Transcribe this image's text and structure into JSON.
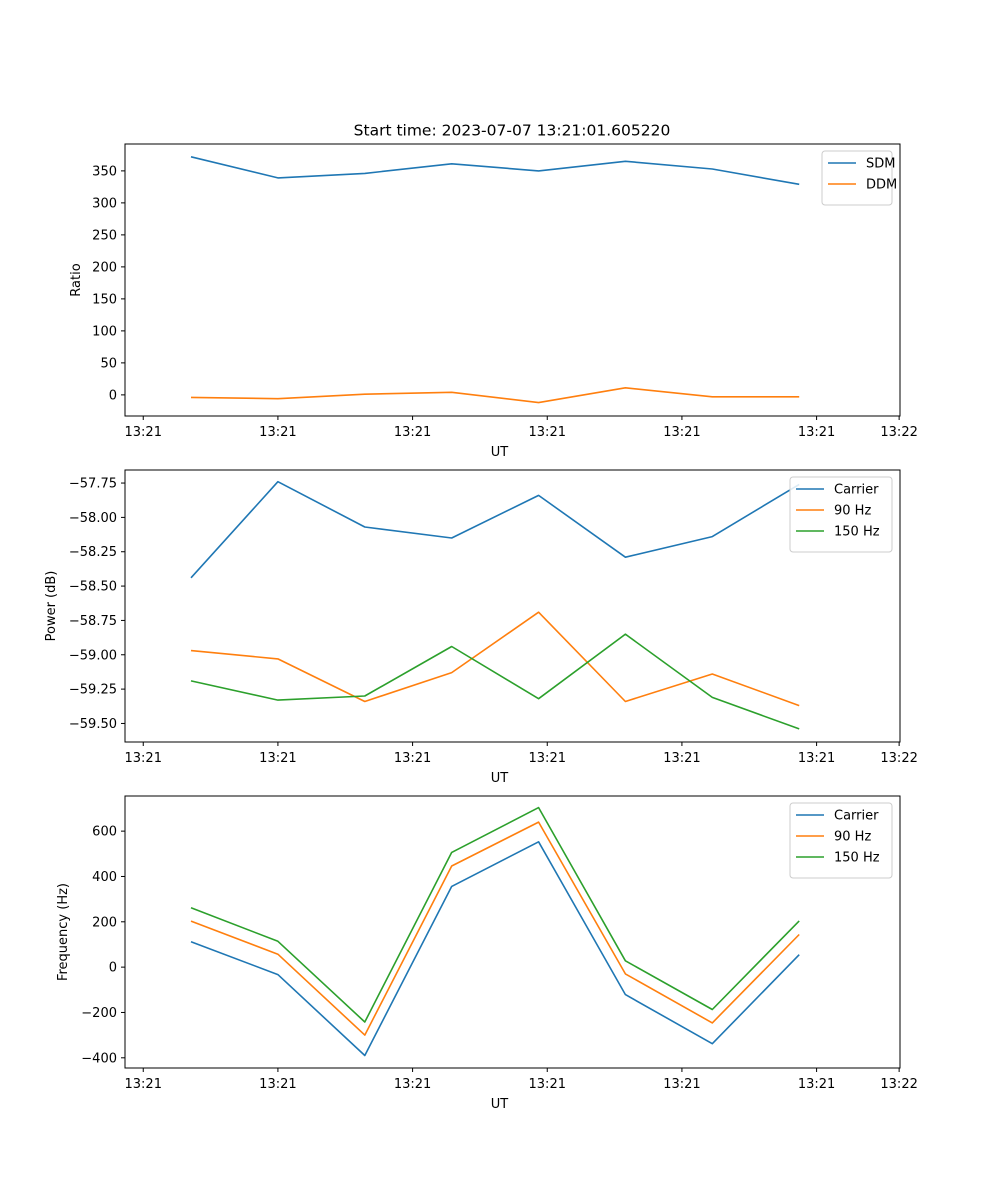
{
  "figure_title": "Start time: 2023-07-07 13:21:01.605220",
  "chart_data": [
    {
      "type": "line",
      "title": "Start time: 2023-07-07 13:21:01.605220",
      "xlabel": "UT",
      "ylabel": "Ratio",
      "x": [
        1,
        2,
        3,
        4,
        5,
        6,
        7,
        8
      ],
      "xlim": [
        0.24,
        9.16
      ],
      "xticks": [
        0.45,
        2.0,
        3.55,
        5.1,
        6.65,
        8.2,
        9.15
      ],
      "xtick_labels": [
        "13:21",
        "13:21",
        "13:21",
        "13:21",
        "13:21",
        "13:21",
        "13:22"
      ],
      "ylim": [
        -33,
        392
      ],
      "yticks": [
        0,
        50,
        100,
        150,
        200,
        250,
        300,
        350
      ],
      "ytick_labels": [
        "0",
        "50",
        "100",
        "150",
        "200",
        "250",
        "300",
        "350"
      ],
      "legend_position": "top-right",
      "series": [
        {
          "name": "SDM",
          "color": "#1f77b4",
          "values": [
            372,
            339,
            346,
            361,
            350,
            365,
            353,
            329
          ]
        },
        {
          "name": "DDM",
          "color": "#ff7f0e",
          "values": [
            -4,
            -6,
            1,
            4,
            -12,
            11,
            -3,
            -3
          ]
        }
      ]
    },
    {
      "type": "line",
      "title": "",
      "xlabel": "UT",
      "ylabel": "Power (dB)",
      "x": [
        1,
        2,
        3,
        4,
        5,
        6,
        7,
        8
      ],
      "xlim": [
        0.24,
        9.16
      ],
      "xticks": [
        0.45,
        2.0,
        3.55,
        5.1,
        6.65,
        8.2,
        9.15
      ],
      "xtick_labels": [
        "13:21",
        "13:21",
        "13:21",
        "13:21",
        "13:21",
        "13:21",
        "13:22"
      ],
      "ylim": [
        -59.635,
        -57.655
      ],
      "yticks": [
        -59.5,
        -59.25,
        -59.0,
        -58.75,
        -58.5,
        -58.25,
        -58.0,
        -57.75
      ],
      "ytick_labels": [
        "−59.50",
        "−59.25",
        "−59.00",
        "−58.75",
        "−58.50",
        "−58.25",
        "−58.00",
        "−57.75"
      ],
      "legend_position": "top-right",
      "series": [
        {
          "name": "Carrier",
          "color": "#1f77b4",
          "values": [
            -58.44,
            -57.74,
            -58.07,
            -58.15,
            -57.84,
            -58.29,
            -58.14,
            -57.76
          ]
        },
        {
          "name": "90 Hz",
          "color": "#ff7f0e",
          "values": [
            -58.97,
            -59.03,
            -59.34,
            -59.13,
            -58.69,
            -59.34,
            -59.14,
            -59.37
          ]
        },
        {
          "name": "150 Hz",
          "color": "#2ca02c",
          "values": [
            -59.19,
            -59.33,
            -59.3,
            -58.94,
            -59.32,
            -58.85,
            -59.31,
            -59.54
          ]
        }
      ]
    },
    {
      "type": "line",
      "title": "",
      "xlabel": "UT",
      "ylabel": "Frequency (Hz)",
      "x": [
        1,
        2,
        3,
        4,
        5,
        6,
        7,
        8
      ],
      "xlim": [
        0.24,
        9.16
      ],
      "xticks": [
        0.45,
        2.0,
        3.55,
        5.1,
        6.65,
        8.2,
        9.15
      ],
      "xtick_labels": [
        "13:21",
        "13:21",
        "13:21",
        "13:21",
        "13:21",
        "13:21",
        "13:22"
      ],
      "ylim": [
        -445,
        755
      ],
      "yticks": [
        -400,
        -200,
        0,
        200,
        400,
        600
      ],
      "ytick_labels": [
        "−400",
        "−200",
        "0",
        "200",
        "400",
        "600"
      ],
      "legend_position": "top-right",
      "series": [
        {
          "name": "Carrier",
          "color": "#1f77b4",
          "values": [
            112,
            -33,
            -390,
            356,
            553,
            -121,
            -338,
            55
          ]
        },
        {
          "name": "90 Hz",
          "color": "#ff7f0e",
          "values": [
            203,
            57,
            -300,
            446,
            640,
            -30,
            -246,
            144
          ]
        },
        {
          "name": "150 Hz",
          "color": "#2ca02c",
          "values": [
            262,
            114,
            -242,
            506,
            704,
            28,
            -187,
            204
          ]
        }
      ]
    }
  ]
}
